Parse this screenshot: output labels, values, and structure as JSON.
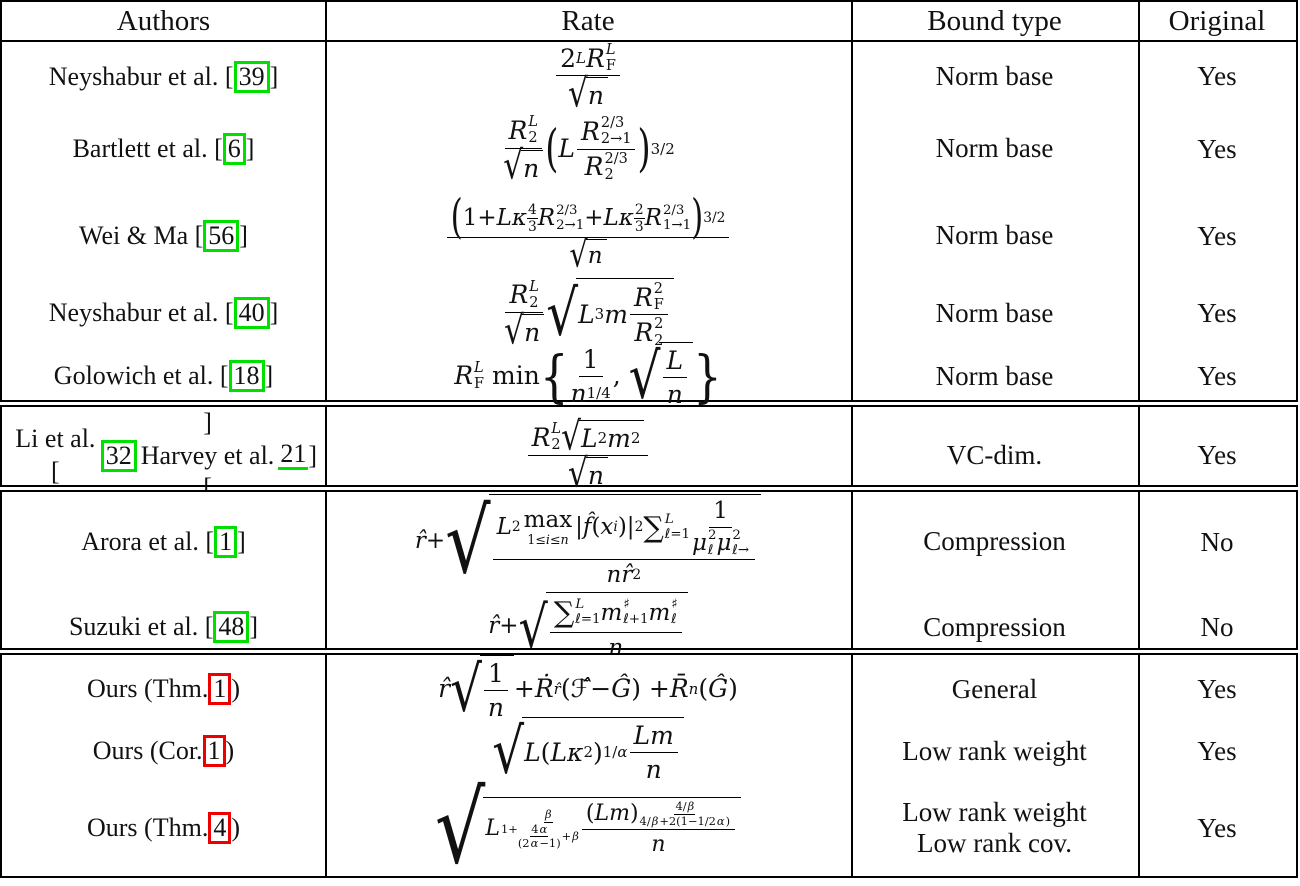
{
  "colors": {
    "citation_green": "#00e000",
    "citation_red": "#ee0000",
    "border": "#000000",
    "background": "#ffffff"
  },
  "table": {
    "columns": [
      {
        "label": "Authors"
      },
      {
        "label": "Rate"
      },
      {
        "label": "Bound type"
      },
      {
        "label": "Original"
      }
    ],
    "sections": [
      {
        "rows": [
          {
            "author_text": "Neyshabur et al. [39]",
            "author_html": "Neyshabur et al. [<span class='cite g' data-name='citation-ref' data-interactable='true'>39</span>]",
            "rate_tex": "\\frac{2^L R_F^L}{\\sqrt{n}}",
            "rate_html": "<span class='fr'><span class='nu'>2<sup><i>L</i></sup><i>R</i><span class='ss'><span><i>L</i></span><span>F</span></span></span><span class='de'><span class='sq'><span class='rt'>&#8730;</span><span class='rd'><i>n</i></span></span></span></span>",
            "bound_lines": [
              "Norm base"
            ],
            "original": "Yes"
          },
          {
            "author_text": "Bartlett et al. [6]",
            "author_html": "Bartlett et al. [<span class='cite g' data-name='citation-ref' data-interactable='true'>6</span>]",
            "rate_tex": "\\frac{R_2^L}{\\sqrt{n}}\\left(L\\frac{R_{2\\to1}^{2/3}}{R_2^{2/3}}\\right)^{3/2}",
            "rate_html": "<span class='fr'><span class='nu'><i>R</i><span class='ss'><span><i>L</i></span><span>2</span></span></span><span class='de'><span class='sq'><span class='rt'>&#8730;</span><span class='rd'><i>n</i></span></span></span></span><span class='bp'>(</span><i>L</i><span class='fr'><span class='nu'><i>R</i><span class='ss'><span>2/3</span><span>2&#8594;1</span></span></span><span class='de'><i>R</i><span class='ss'><span>2/3</span><span>2</span></span></span></span><span class='bp'>)</span><sup>3/2</sup>",
            "bound_lines": [
              "Norm base"
            ],
            "original": "Yes"
          },
          {
            "author_text": "Wei & Ma [56]",
            "author_html": "Wei &amp; Ma [<span class='cite g' data-name='citation-ref' data-interactable='true'>56</span>]",
            "rate_tex": "\\frac{(1+L\\kappa^{4/3}R_{2\\to1}^{2/3}+L\\kappa^{2/3}R_{1\\to1}^{2/3})^{3/2}}{\\sqrt{n}}",
            "rate_html": "<span class='fr'><span class='nu'><span class='bp'>(</span>1+<i>L&#954;</i><sup><span class='vf'><span class='nu'>4</span><span>3</span></span></sup><i>R</i><span class='ss'><span>2/3</span><span>2&#8594;1</span></span>+<i>L&#954;</i><sup><span class='vf'><span class='nu'>2</span><span>3</span></span></sup><i>R</i><span class='ss'><span>2/3</span><span>1&#8594;1</span></span><span class='bp'>)</span><sup>3/2</sup></span><span class='de'><span class='sq'><span class='rt'>&#8730;</span><span class='rd'><i>n</i></span></span></span></span>",
            "bound_lines": [
              "Norm base"
            ],
            "original": "Yes"
          },
          {
            "author_text": "Neyshabur et al. [40]",
            "author_html": "Neyshabur et al. [<span class='cite g' data-name='citation-ref' data-interactable='true'>40</span>]",
            "rate_tex": "\\frac{R_2^L}{\\sqrt{n}}\\sqrt{L^3 m \\frac{R_F^2}{R_2^2}}",
            "rate_html": "<span class='fr'><span class='nu'><i>R</i><span class='ss'><span><i>L</i></span><span>2</span></span></span><span class='de'><span class='sq'><span class='rt'>&#8730;</span><span class='rd'><i>n</i></span></span></span></span><span class='sq'><span class='rt m'>&#8730;</span><span class='rd'><i>L</i><sup>3</sup><i>m</i><span class='fr'><span class='nu'><i>R</i><span class='ss'><span>2</span><span>F</span></span></span><span class='de'><i>R</i><span class='ss'><span>2</span><span>2</span></span></span></span></span></span>",
            "bound_lines": [
              "Norm base"
            ],
            "original": "Yes"
          },
          {
            "author_text": "Golowich et al. [18]",
            "author_html": "Golowich et al. [<span class='cite g' data-name='citation-ref' data-interactable='true'>18</span>]",
            "rate_tex": "R_F^L \\min\\{\\frac{1}{n^{1/4}},\\sqrt{\\frac{L}{n}}\\}",
            "rate_html": "<i>R</i><span class='ss'><span><i>L</i></span><span>F</span></span>&nbsp;min<span class='bb'>{</span><span class='fr'><span class='nu'>1</span><span class='de'><i>n</i><sup>1/4</sup></span></span>,&nbsp;<span class='sq'><span class='rt m'>&#8730;</span><span class='rd'><span class='fr'><span class='nu'><i>L</i></span><span class='de'><i>n</i></span></span></span></span><span class='bb'>}</span>",
            "bound_lines": [
              "Norm base"
            ],
            "original": "Yes"
          }
        ]
      },
      {
        "rows": [
          {
            "author_text": "Li et al. [32] / Harvey et al. [21]",
            "author_html": "Li et al. [<span class='cite g' data-name='citation-ref' data-interactable='true'>32</span>]<br>Harvey et al. [<span class='cite g u' data-name='citation-ref' data-interactable='true'>21</span>]",
            "rate_tex": "\\frac{R_2^L\\sqrt{L^2 m^2}}{\\sqrt{n}}",
            "rate_html": "<span class='fr'><span class='nu'><i>R</i><span class='ss'><span><i>L</i></span><span>2</span></span><span class='sq'><span class='rt'>&#8730;</span><span class='rd'><i>L</i><sup>2</sup><i>m</i><sup>2</sup></span></span></span><span class='de'><span class='sq'><span class='rt'>&#8730;</span><span class='rd'><i>n</i></span></span></span></span>",
            "bound_lines": [
              "VC-dim."
            ],
            "original": "Yes"
          }
        ]
      },
      {
        "rows": [
          {
            "author_text": "Arora et al. [1]",
            "author_html": "Arora et al. [<span class='cite g' data-name='citation-ref' data-interactable='true'>1</span>]",
            "rate_tex": "\\hat{r}+\\sqrt{\\frac{L^2\\max_{1\\le i\\le n}|\\hat{f}(x_i)|^2\\sum_{\\ell=1}^{L}\\frac{1}{\\mu_\\ell^2\\mu_{\\ell\\to}^2}}{n\\hat{r}^2}}",
            "rate_html": "<i>r&#770;</i> + <span class='sq'><span class='rt t'>&#8730;</span><span class='rd'><span class='fr'><span class='nu'><i>L</i><sup>2</sup><span class='lim'><span>max</span><span class='lo'>1&#8804;<i>i</i>&#8804;<i>n</i></span></span>|<i>f&#770;</i>(<i>x</i><sub><i>i</i></sub>)|<sup>2</sup><span class='sum'>&#8721;</span><span class='ss'><span><i>L</i></span><span>&#8467;=1</span></span><span class='fr'><span class='nu'>1</span><span class='de'><i>&#956;</i><span class='ss'><span>2</span><span>&#8467;</span></span><i>&#956;</i><span class='ss'><span>2</span><span>&#8467;&#8594;</span></span></span></span></span><span class='de'><i>n</i><i>r&#770;</i><sup>2</sup></span></span></span></span>",
            "bound_lines": [
              "Compression"
            ],
            "original": "No"
          },
          {
            "author_text": "Suzuki et al. [48]",
            "author_html": "Suzuki et al. [<span class='cite g' data-name='citation-ref' data-interactable='true'>48</span>]",
            "rate_tex": "\\hat{r}+\\sqrt{\\frac{\\sum_{\\ell=1}^{L} m_{\\ell+1}^{\\sharp} m_{\\ell}^{\\sharp}}{n}}",
            "rate_html": "<i>r&#770;</i>+<span class='sq'><span class='rt m'>&#8730;</span><span class='rd'><span class='fr'><span class='nu'><span class='sum'>&#8721;</span><span class='ss'><span><i>L</i></span><span>&#8467;=1</span></span><i>m</i><span class='ss'><span>&#9839;</span><span>&#8467;+1</span></span><i>m</i><span class='ss'><span>&#9839;</span><span>&#8467;</span></span></span><span class='de'><i>n</i></span></span></span></span>",
            "bound_lines": [
              "Compression"
            ],
            "original": "No"
          }
        ]
      },
      {
        "rows": [
          {
            "author_text": "Ours (Thm. 1)",
            "author_html": "Ours (Thm. <span class='cite r' data-name='citation-ref' data-interactable='true'>1</span>)",
            "rate_tex": "\\hat{r}\\sqrt{\\frac{1}{n}}+\\dot{R}_{\\hat{r}}(\\hat{\\mathcal{F}}-\\hat{\\mathcal{G}})+\\bar{R}_n(\\hat{\\mathcal{G}})",
            "rate_html": "<i>r&#770;</i><span class='sq'><span class='rt m'>&#8730;</span><span class='rd'><span class='fr'><span class='nu'>1</span><span class='de'><i>n</i></span></span></span></span> + <i>R&#775;</i><sub><i>r&#770;</i></sub>(<i>&#8497;&#770;</i> &#8722; <i>&#284;</i>) + <i>R&#772;</i><sub><i>n</i></sub>(<i>&#284;</i>)",
            "bound_lines": [
              "General"
            ],
            "original": "Yes"
          },
          {
            "author_text": "Ours (Cor. 1)",
            "author_html": "Ours (Cor. <span class='cite r' data-name='citation-ref' data-interactable='true'>1</span>)",
            "rate_tex": "\\sqrt{L(L\\kappa^2)^{1/\\alpha}\\frac{Lm}{n}}",
            "rate_html": "<span class='sq'><span class='rt m'>&#8730;</span><span class='rd'><i>L</i>(<i>L&#954;</i><sup>2</sup>)<sup>1/<i>&#945;</i></sup><span class='fr'><span class='nu'><i>Lm</i></span><span class='de'><i>n</i></span></span></span></span>",
            "bound_lines": [
              "Low rank weight"
            ],
            "original": "Yes"
          },
          {
            "author_text": "Ours (Thm. 4)",
            "author_html": "Ours (Thm. <span class='cite r' data-name='citation-ref' data-interactable='true'>4</span>)",
            "rate_tex": "\\sqrt{L^{1+\\frac{\\beta}{\\frac{4\\alpha}{(2\\alpha-1)}+\\beta}}\\frac{(Lm)^{\\frac{4/\\beta}{4/\\beta+2(1-1/2\\alpha)}}}{n}}",
            "rate_html": "<span class='sq'><span class='rt xt'>&#8730;</span><span class='rd'><i>L</i><span class='bx'>1+<span class='vf'><span class='nu'><i>&#946;</i></span><span><span class='vf'><span class='nu'>4<i>&#945;</i></span><span>(2<i>&#945;</i>&#8722;1)</span></span>+<i>&#946;</i></span></span></span><span class='fr'><span class='nu'>(<i>Lm</i>)<span class='bx'><span class='vf'><span class='nu'>4/<i>&#946;</i></span><span>4/<i>&#946;</i>+2(1&#8722;1/2<i>&#945;</i>)</span></span></span></span><span class='de'><i>n</i></span></span></span></span>",
            "bound_lines": [
              "Low rank weight",
              "Low rank cov."
            ],
            "original": "Yes"
          }
        ]
      }
    ]
  }
}
